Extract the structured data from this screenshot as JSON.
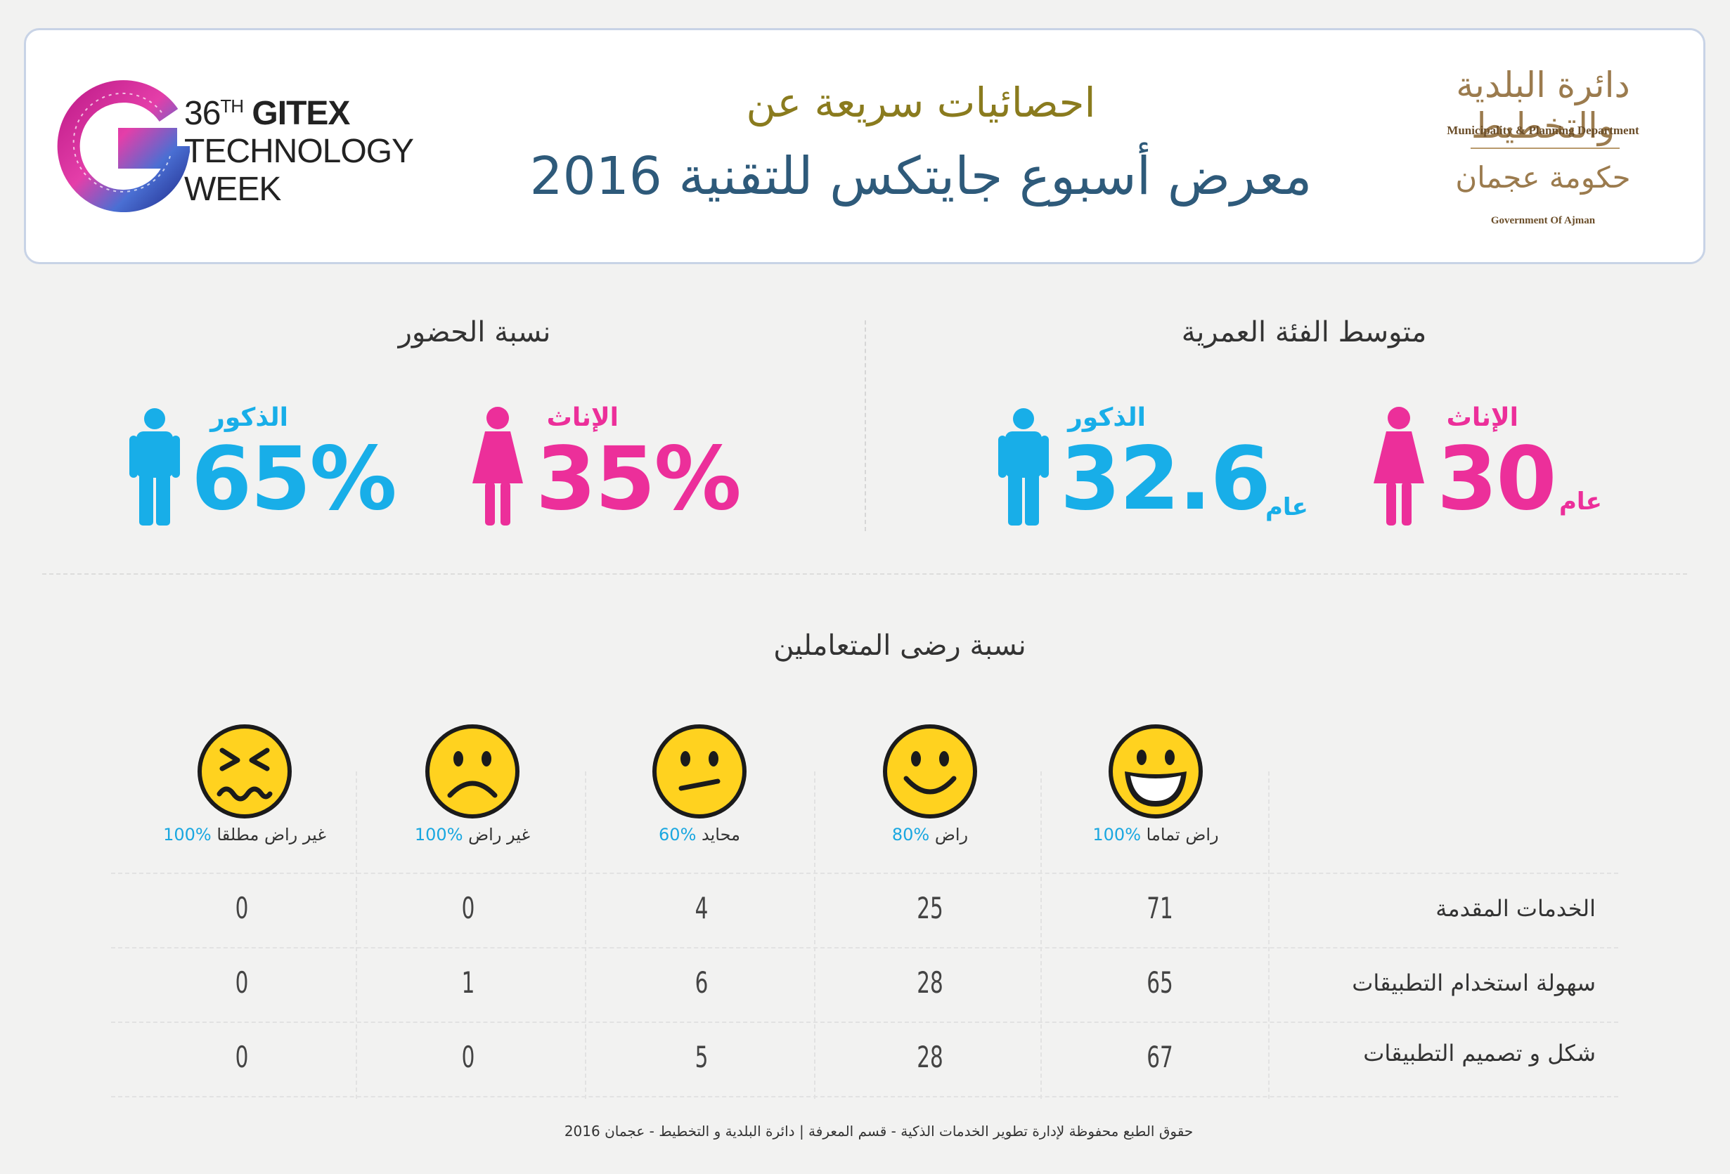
{
  "header": {
    "gitex": {
      "line1_prefix": "36",
      "line1_sup": "TH",
      "line1_brand": "GITEX",
      "line2": "TECHNOLOGY",
      "line3": "WEEK"
    },
    "title_top": "احصائيات سريعة عن",
    "title_main": "معرض أسبوع جايتكس للتقنية 2016",
    "org": {
      "ar_department": "دائرة البلدية والتخطيط",
      "en_department": "Municipality & Planning Department",
      "ar_government": "حكومة عجمان",
      "en_government": "Government Of Ajman"
    }
  },
  "attendance": {
    "title": "نسبة الحضور",
    "male": {
      "label": "الذكور",
      "value": "65%"
    },
    "female": {
      "label": "الإناث",
      "value": "35%"
    }
  },
  "age": {
    "title": "متوسط الفئة العمرية",
    "male": {
      "label": "الذكور",
      "value": "32.6",
      "unit": "عام"
    },
    "female": {
      "label": "الإناث",
      "value": "30",
      "unit": "عام"
    }
  },
  "satisfaction": {
    "title": "نسبة رضى المتعاملين",
    "columns": [
      {
        "label": "راض تماما",
        "pct": "100%",
        "icon": "very-happy-face-icon"
      },
      {
        "label": "راض",
        "pct": "80%",
        "icon": "happy-face-icon"
      },
      {
        "label": "محايد",
        "pct": "60%",
        "icon": "neutral-face-icon"
      },
      {
        "label": "غير راض",
        "pct": "100%",
        "icon": "sad-face-icon"
      },
      {
        "label": "غير راض مطلقا",
        "pct": "100%",
        "icon": "very-unhappy-face-icon"
      }
    ],
    "rows": [
      {
        "label": "الخدمات المقدمة",
        "values": [
          "71",
          "25",
          "4",
          "0",
          "0"
        ]
      },
      {
        "label": "سهولة استخدام التطبيقات",
        "values": [
          "65",
          "28",
          "6",
          "1",
          "0"
        ]
      },
      {
        "label": "شكل و تصميم التطبيقات",
        "values": [
          "67",
          "28",
          "5",
          "0",
          "0"
        ]
      }
    ]
  },
  "footer": "حقوق الطبع محفوظة لإدارة تطوير الخدمات الذكية - قسم المعرفة  |  دائرة البلدية و التخطيط - عجمان  2016",
  "colors": {
    "female": "#ec2f9a",
    "male": "#18aee8",
    "title_gold": "#8a7b1e",
    "title_blue": "#2e5a7a",
    "smiley": "#ffd21f"
  }
}
